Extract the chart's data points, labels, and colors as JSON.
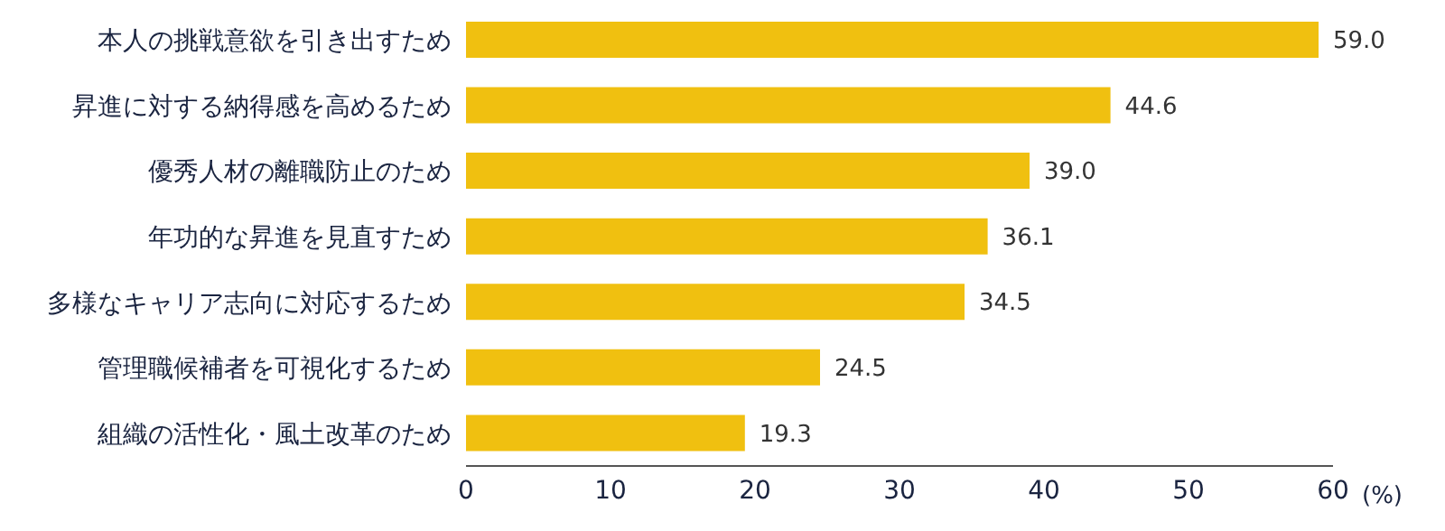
{
  "chart_data": {
    "type": "bar",
    "orientation": "horizontal",
    "xlabel": "(%)",
    "categories": [
      "本人の挑戦意欲を引き出すため",
      "昇進に対する納得感を高めるため",
      "優秀人材の離職防止のため",
      "年功的な昇進を見直すため",
      "多様なキャリア志向に対応するため",
      "管理職候補者を可視化するため",
      "組織の活性化・風土改革のため"
    ],
    "values": [
      59.0,
      44.6,
      39.0,
      36.1,
      34.5,
      24.5,
      19.3
    ],
    "value_labels": [
      "59.0",
      "44.6",
      "39.0",
      "36.1",
      "34.5",
      "24.5",
      "19.3"
    ],
    "color": "#f0c010",
    "xlim": [
      0,
      60
    ],
    "xticks": [
      0,
      10,
      20,
      30,
      40,
      50,
      60
    ],
    "grid": false
  }
}
